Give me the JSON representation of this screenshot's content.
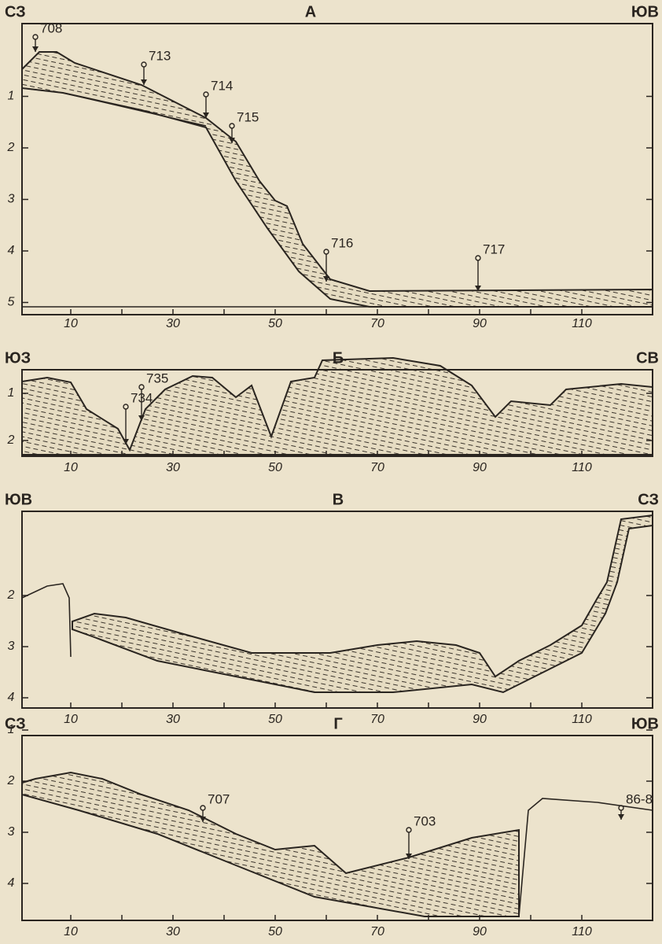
{
  "panels": [
    {
      "letter": "А",
      "left": "СЗ",
      "right": "ЮВ",
      "yticks": [
        1,
        2,
        3,
        4,
        5
      ],
      "xticks": [
        10,
        30,
        50,
        70,
        90,
        110
      ],
      "stations": [
        "708",
        "713",
        "714",
        "715",
        "716",
        "717"
      ]
    },
    {
      "letter": "Б",
      "left": "ЮЗ",
      "right": "СВ",
      "yticks": [
        1,
        2
      ],
      "xticks": [
        10,
        30,
        50,
        70,
        90,
        110
      ],
      "stations": [
        "734",
        "735"
      ]
    },
    {
      "letter": "В",
      "left": "ЮВ",
      "right": "СЗ",
      "yticks": [
        2,
        3,
        4
      ],
      "xticks": [
        10,
        30,
        50,
        70,
        90,
        110
      ],
      "stations": []
    },
    {
      "letter": "Г",
      "left": "СЗ",
      "right": "ЮВ",
      "yticks": [
        1,
        2,
        3,
        4
      ],
      "xticks": [
        10,
        30,
        50,
        70,
        90,
        110
      ],
      "stations": [
        "707",
        "703",
        "86-8"
      ]
    }
  ]
}
